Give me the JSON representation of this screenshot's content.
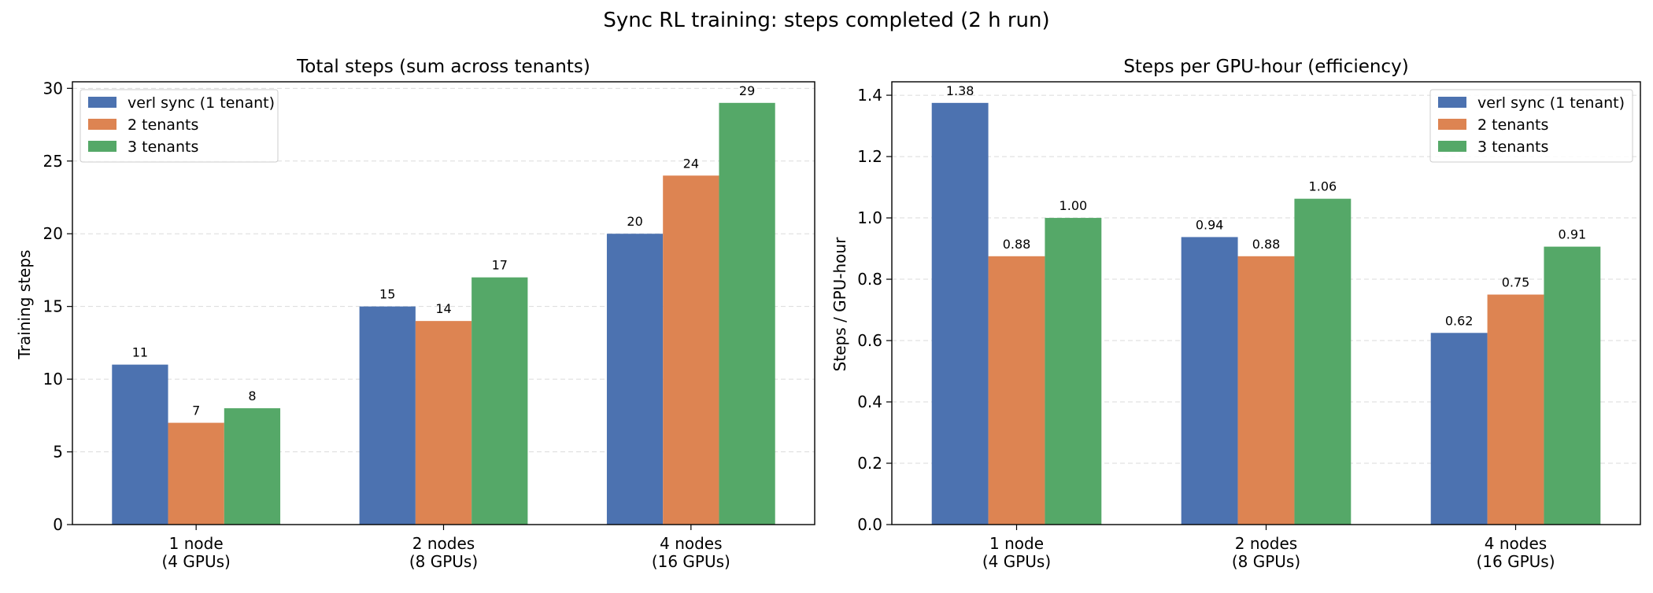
{
  "figure_title": "Sync RL training: steps completed (2 h run)",
  "colors": {
    "verl_sync": "#4c72b0",
    "two_tenants": "#dd8452",
    "three_tenants": "#55a868"
  },
  "chart_data": [
    {
      "type": "bar",
      "title": "Total steps (sum across tenants)",
      "xlabel": "",
      "ylabel": "Training steps",
      "categories": [
        [
          "1 node",
          "(4 GPUs)"
        ],
        [
          "2 nodes",
          "(8 GPUs)"
        ],
        [
          "4 nodes",
          "(16 GPUs)"
        ]
      ],
      "series": [
        {
          "name": "verl sync (1 tenant)",
          "color": "#4c72b0",
          "values": [
            11,
            15,
            20
          ],
          "labels": [
            "11",
            "15",
            "20"
          ]
        },
        {
          "name": "2 tenants",
          "color": "#dd8452",
          "values": [
            7,
            14,
            24
          ],
          "labels": [
            "7",
            "14",
            "24"
          ]
        },
        {
          "name": "3 tenants",
          "color": "#55a868",
          "values": [
            8,
            17,
            29
          ],
          "labels": [
            "8",
            "17",
            "29"
          ]
        }
      ],
      "ylim": [
        0,
        30.45
      ],
      "yticks": [
        0,
        5,
        10,
        15,
        20,
        25,
        30
      ],
      "ytick_labels": [
        "0",
        "5",
        "10",
        "15",
        "20",
        "25",
        "30"
      ],
      "grid": "y dashed",
      "legend_position": "upper left"
    },
    {
      "type": "bar",
      "title": "Steps per GPU-hour (efficiency)",
      "xlabel": "",
      "ylabel": "Steps / GPU-hour",
      "categories": [
        [
          "1 node",
          "(4 GPUs)"
        ],
        [
          "2 nodes",
          "(8 GPUs)"
        ],
        [
          "4 nodes",
          "(16 GPUs)"
        ]
      ],
      "series": [
        {
          "name": "verl sync (1 tenant)",
          "color": "#4c72b0",
          "values": [
            1.375,
            0.9375,
            0.625
          ],
          "labels": [
            "1.38",
            "0.94",
            "0.62"
          ]
        },
        {
          "name": "2 tenants",
          "color": "#dd8452",
          "values": [
            0.875,
            0.875,
            0.75
          ],
          "labels": [
            "0.88",
            "0.88",
            "0.75"
          ]
        },
        {
          "name": "3 tenants",
          "color": "#55a868",
          "values": [
            1.0,
            1.0625,
            0.90625
          ],
          "labels": [
            "1.00",
            "1.06",
            "0.91"
          ]
        }
      ],
      "ylim": [
        0,
        1.4438
      ],
      "yticks": [
        0,
        0.2,
        0.4,
        0.6,
        0.8,
        1.0,
        1.2,
        1.4
      ],
      "ytick_labels": [
        "0.0",
        "0.2",
        "0.4",
        "0.6",
        "0.8",
        "1.0",
        "1.2",
        "1.4"
      ],
      "grid": "y dashed",
      "legend_position": "upper right"
    }
  ]
}
